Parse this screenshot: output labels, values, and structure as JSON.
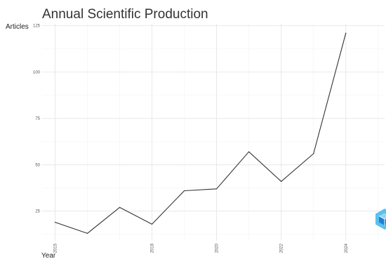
{
  "chart_data": {
    "type": "line",
    "title": "Annual Scientific Production",
    "xlabel": "Year",
    "ylabel": "Articles",
    "x": [
      2015,
      2016,
      2017,
      2018,
      2019,
      2020,
      2021,
      2022,
      2023,
      2024,
      2025
    ],
    "values": [
      19,
      13,
      27,
      18,
      36,
      37,
      57,
      41,
      56,
      121,
      null
    ],
    "y_ticks": [
      25,
      50,
      75,
      100,
      125
    ],
    "x_ticks": [
      2015,
      2018,
      2020,
      2022,
      2024
    ],
    "x_tick_labels": [
      "2015",
      "2018",
      "2020",
      "2022",
      "2024"
    ],
    "xlim": [
      2014.6,
      2025.2
    ],
    "ylim": [
      9,
      126
    ],
    "grid": true,
    "legend": "none"
  },
  "colors": {
    "line": "#333333",
    "watermark_light": "#5bc0f0",
    "watermark_dark": "#1f7fd0"
  },
  "icons": {
    "watermark": "cube-logo-icon"
  }
}
